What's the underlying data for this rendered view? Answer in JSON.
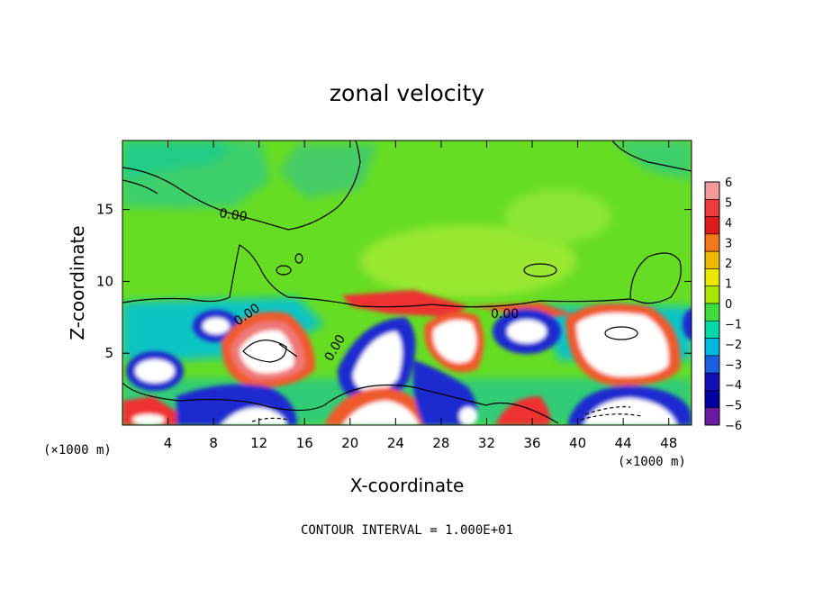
{
  "chart_data": {
    "type": "heatmap",
    "title": "zonal velocity",
    "xlabel": "X-coordinate",
    "ylabel": "Z-coordinate",
    "x_units": "(×1000 m)",
    "y_units": "(×1000 m)",
    "xlim": [
      0,
      50
    ],
    "ylim": [
      0,
      19.8
    ],
    "x_ticks": [
      4,
      8,
      12,
      16,
      20,
      24,
      28,
      32,
      36,
      40,
      44,
      48
    ],
    "y_ticks": [
      5,
      10,
      15
    ],
    "colorbar": {
      "levels": [
        6,
        5,
        4,
        3,
        2,
        1,
        0,
        -1,
        -2,
        -3,
        -4,
        -5,
        -6
      ],
      "colors": [
        "#f49a9a",
        "#f03c3c",
        "#e01a1a",
        "#f07818",
        "#f0b800",
        "#e8e800",
        "#a6e800",
        "#3cdc3c",
        "#00d8a8",
        "#00b8e0",
        "#1860e0",
        "#1010b8",
        "#0000a0",
        "#6a1aa0"
      ]
    },
    "contour_labels": [
      "0.00",
      "0.00",
      "0.00",
      "0.00"
    ],
    "footer": "CONTOUR INTERVAL = 1.000E+01"
  }
}
